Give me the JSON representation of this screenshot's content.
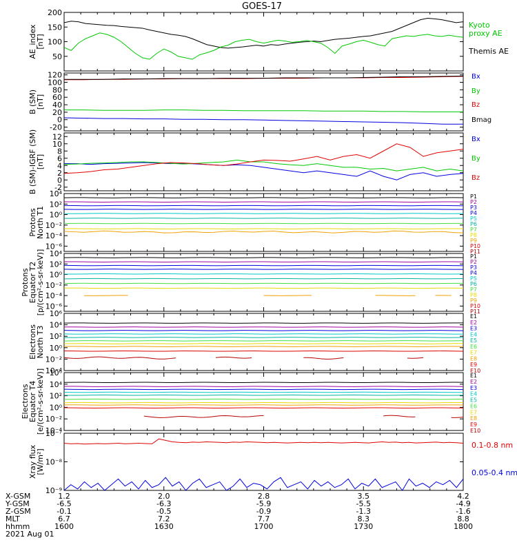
{
  "title": "GOES-17",
  "colors": {
    "black": "#000000",
    "green": "#00c800",
    "red": "#e00000",
    "blue": "#0000e0",
    "dkred": "#b40000",
    "cyan": "#00c8c8",
    "teal": "#00b4a0",
    "yellow": "#e8d800",
    "orange": "#f0a000",
    "purple": "#a000a0",
    "ltgreen": "#40e040"
  },
  "x_axis": {
    "row_labels": [
      "X-GSM",
      "Y-GSM",
      "Z-GSM",
      "MLT",
      "hhmm"
    ],
    "columns": [
      [
        "1.2",
        "-6.5",
        "-0.1",
        "6.7",
        "1600"
      ],
      [
        "2.0",
        "-6.3",
        "-0.5",
        "7.2",
        "1630"
      ],
      [
        "2.8",
        "-5.9",
        "-0.9",
        "7.7",
        "1700"
      ],
      [
        "3.5",
        "-5.5",
        "-1.3",
        "8.3",
        "1730"
      ],
      [
        "4.2",
        "-4.9",
        "-1.6",
        "8.8",
        "1800"
      ]
    ],
    "date": "2021 Aug 01"
  },
  "chart_data": [
    {
      "type": "line",
      "ylabel": "AE_index\n[nT]",
      "ylim": [
        0,
        200
      ],
      "yscale": "linear",
      "yticks": [
        50,
        100,
        150,
        200
      ],
      "legend": [
        "Kyoto\nproxy AE",
        "Themis AE"
      ],
      "legend_colors": [
        "green",
        "black"
      ],
      "series": [
        {
          "name": "Themis AE",
          "color": "black",
          "values": [
            165,
            170,
            168,
            162,
            160,
            158,
            156,
            155,
            152,
            150,
            148,
            146,
            140,
            135,
            130,
            125,
            122,
            118,
            110,
            100,
            90,
            85,
            80,
            78,
            80,
            82,
            85,
            88,
            85,
            90,
            88,
            92,
            95,
            98,
            100,
            102,
            100,
            104,
            108,
            110,
            112,
            115,
            118,
            120,
            125,
            130,
            135,
            145,
            155,
            165,
            175,
            180,
            178,
            175,
            170,
            165,
            168
          ]
        },
        {
          "name": "Kyoto proxy AE",
          "color": "green",
          "values": [
            80,
            70,
            95,
            110,
            120,
            130,
            125,
            115,
            100,
            80,
            60,
            45,
            40,
            60,
            75,
            65,
            50,
            45,
            40,
            55,
            62,
            70,
            82,
            88,
            100,
            105,
            108,
            100,
            95,
            100,
            105,
            102,
            98,
            100,
            104,
            100,
            95,
            80,
            60,
            85,
            92,
            100,
            105,
            98,
            90,
            85,
            110,
            115,
            120,
            118,
            122,
            125,
            120,
            118,
            122,
            118,
            115
          ]
        }
      ]
    },
    {
      "type": "line",
      "ylabel": "B (SM)\n[nT]",
      "ylim": [
        -30,
        125
      ],
      "yscale": "linear",
      "yticks": [
        -20,
        0,
        20,
        40,
        60,
        80,
        100,
        120
      ],
      "legend": [
        "Bx",
        "By",
        "Bz",
        "Bmag"
      ],
      "legend_colors": [
        "blue",
        "green",
        "red",
        "black"
      ],
      "series": [
        {
          "name": "Bx",
          "color": "blue",
          "values": [
            5,
            4,
            3,
            3,
            2,
            2,
            1,
            1,
            0,
            0,
            -1,
            -2,
            -3,
            -4,
            -5,
            -6,
            -7,
            -8,
            -10,
            -12,
            -12
          ]
        },
        {
          "name": "By",
          "color": "green",
          "values": [
            26,
            26,
            25,
            25,
            25,
            26,
            26,
            25,
            25,
            24,
            24,
            24,
            24,
            23,
            23,
            23,
            22,
            22,
            21,
            21,
            21
          ]
        },
        {
          "name": "Bz",
          "color": "red",
          "values": [
            107,
            107,
            108,
            108,
            109,
            109,
            110,
            110,
            110,
            110,
            111,
            111,
            111,
            112,
            112,
            112,
            113,
            113,
            114,
            115,
            116
          ]
        },
        {
          "name": "Bmag",
          "color": "black",
          "values": [
            108,
            108,
            108,
            109,
            109,
            110,
            110,
            110,
            111,
            111,
            111,
            112,
            112,
            112,
            112,
            113,
            114,
            115,
            115,
            116,
            117
          ]
        }
      ]
    },
    {
      "type": "line",
      "ylabel": "B (SM)-IGRF (SM)\n[nT]",
      "ylim": [
        -3,
        13
      ],
      "yscale": "linear",
      "yticks": [
        -2,
        0,
        2,
        4,
        6,
        8,
        10,
        12
      ],
      "legend": [
        "Bx",
        "By",
        "Bz"
      ],
      "legend_colors": [
        "blue",
        "green",
        "red"
      ],
      "series": [
        {
          "name": "Bx",
          "color": "blue",
          "values": [
            4.5,
            4.5,
            4.3,
            4.5,
            4.6,
            4.7,
            4.8,
            4.7,
            4.5,
            4.6,
            4.4,
            4.2,
            4.0,
            4.2,
            4.0,
            3.5,
            3.0,
            2.5,
            2.0,
            2.5,
            2.0,
            1.5,
            1.0,
            2.5,
            1.0,
            0.0,
            1.5,
            2.0,
            1.0,
            1.5,
            1.8
          ]
        },
        {
          "name": "By",
          "color": "green",
          "values": [
            4.3,
            4.4,
            4.6,
            4.7,
            4.8,
            5.0,
            5.0,
            4.8,
            4.6,
            4.4,
            4.6,
            4.8,
            5.0,
            5.5,
            5.0,
            5.0,
            4.5,
            4.2,
            4.0,
            4.5,
            4.0,
            3.5,
            3.5,
            3.0,
            3.2,
            2.5,
            3.0,
            3.5,
            2.5,
            3.0,
            2.5
          ]
        },
        {
          "name": "Bz",
          "color": "red",
          "values": [
            1.8,
            2.0,
            2.3,
            2.8,
            3.0,
            3.5,
            4.0,
            4.5,
            4.8,
            4.7,
            4.5,
            4.2,
            4.0,
            4.4,
            5.0,
            5.5,
            5.4,
            5.2,
            5.8,
            6.5,
            5.5,
            6.5,
            7.0,
            6.0,
            8.0,
            10.0,
            9.0,
            6.5,
            7.5,
            8.0,
            8.5
          ]
        }
      ]
    },
    {
      "type": "line",
      "ylabel": "Protons\nNorth T1",
      "ylim": [
        -7,
        4
      ],
      "yscale": "log10",
      "yticks": [
        -6,
        -4,
        -2,
        0,
        2,
        4
      ],
      "ytick_labels": [
        "10⁻⁶",
        "10⁻⁴",
        "10⁻²",
        "10⁰",
        "10²",
        "10⁴"
      ],
      "legend": [
        "P1",
        "P2",
        "P3",
        "P4",
        "P5",
        "P6",
        "P7",
        "P8",
        "P9",
        "P10",
        "P11"
      ],
      "legend_colors": [
        "black",
        "purple",
        "blue",
        "blue",
        "cyan",
        "teal",
        "ltgreen",
        "yellow",
        "orange",
        "red",
        "dkred"
      ],
      "series": [
        {
          "name": "P1",
          "color": "black",
          "level": 3.2
        },
        {
          "name": "P2",
          "color": "purple",
          "level": 2.4
        },
        {
          "name": "P3",
          "color": "blue",
          "level": 1.7
        },
        {
          "name": "P4",
          "color": "blue",
          "level": 1.0
        },
        {
          "name": "P5",
          "color": "cyan",
          "level": 0.2
        },
        {
          "name": "P6",
          "color": "teal",
          "level": -0.7
        },
        {
          "name": "P7",
          "color": "ltgreen",
          "level": -1.7
        },
        {
          "name": "P8",
          "color": "yellow",
          "level": -2.7
        },
        {
          "name": "P9",
          "color": "orange",
          "level": -3.3,
          "wavy": true
        }
      ]
    },
    {
      "type": "line",
      "ylabel": "Protons\nEquator T2\n[p/(cm²-s-sr-keV)]",
      "ylim": [
        -7,
        4
      ],
      "yscale": "log10",
      "yticks": [
        -6,
        -4,
        -2,
        0,
        2,
        4
      ],
      "ytick_labels": [
        "10⁻⁶",
        "10⁻⁴",
        "10⁻²",
        "10⁰",
        "10²",
        "10⁴"
      ],
      "legend": [
        "P1",
        "P2",
        "P3",
        "P4",
        "P5",
        "P6",
        "P7",
        "P8",
        "P9",
        "P10",
        "P11"
      ],
      "legend_colors": [
        "black",
        "purple",
        "blue",
        "blue",
        "cyan",
        "teal",
        "ltgreen",
        "yellow",
        "orange",
        "red",
        "dkred"
      ],
      "series": [
        {
          "name": "P1",
          "color": "black",
          "level": 3.2
        },
        {
          "name": "P2",
          "color": "purple",
          "level": 2.4
        },
        {
          "name": "P3",
          "color": "blue",
          "level": 1.7
        },
        {
          "name": "P4",
          "color": "blue",
          "level": 1.0
        },
        {
          "name": "P5",
          "color": "cyan",
          "level": 0.1
        },
        {
          "name": "P6",
          "color": "teal",
          "level": -0.8
        },
        {
          "name": "P7",
          "color": "ltgreen",
          "level": -1.7
        },
        {
          "name": "P8",
          "color": "yellow",
          "level": -2.6
        },
        {
          "name": "P9",
          "color": "orange",
          "level": -4.0,
          "segments": [
            [
              0.05,
              0.16
            ],
            [
              0.5,
              0.62
            ],
            [
              0.78,
              0.88
            ],
            [
              0.93,
              0.97
            ]
          ]
        }
      ]
    },
    {
      "type": "line",
      "ylabel": "Electrons\nNorth T3",
      "ylim": [
        -4,
        6
      ],
      "yscale": "log10",
      "yticks": [
        -4,
        -2,
        0,
        2,
        4,
        6
      ],
      "ytick_labels": [
        "10⁻⁴",
        "10⁻²",
        "10⁰",
        "10²",
        "10⁴",
        "10⁶"
      ],
      "legend": [
        "E1",
        "E2",
        "E3",
        "E4",
        "E5",
        "E6",
        "E7",
        "E8",
        "E9",
        "E10"
      ],
      "legend_colors": [
        "black",
        "purple",
        "blue",
        "cyan",
        "teal",
        "ltgreen",
        "yellow",
        "orange",
        "red",
        "dkred"
      ],
      "series": [
        {
          "name": "E1",
          "color": "black",
          "level": 4.3
        },
        {
          "name": "E2",
          "color": "purple",
          "level": 3.6
        },
        {
          "name": "E3",
          "color": "blue",
          "level": 3.0
        },
        {
          "name": "E4",
          "color": "cyan",
          "level": 2.4
        },
        {
          "name": "E5",
          "color": "teal",
          "level": 1.8
        },
        {
          "name": "E6",
          "color": "ltgreen",
          "level": 1.2
        },
        {
          "name": "E7",
          "color": "yellow",
          "level": 0.7
        },
        {
          "name": "E8",
          "color": "orange",
          "level": 0.2
        },
        {
          "name": "E9",
          "color": "red",
          "level": -0.6
        },
        {
          "name": "E10",
          "color": "dkred",
          "level": -1.8,
          "segments": [
            [
              0,
              0.28
            ],
            [
              0.38,
              0.47
            ],
            [
              0.6,
              0.7
            ],
            [
              0.86,
              0.9
            ]
          ],
          "wavy": true
        }
      ]
    },
    {
      "type": "line",
      "ylabel": "Electrons\nEquator T4\n[e/(cm²-s-sr-keV)]",
      "ylim": [
        -4,
        6
      ],
      "yscale": "log10",
      "yticks": [
        -4,
        -2,
        0,
        2,
        4,
        6
      ],
      "ytick_labels": [
        "10⁻⁴",
        "10⁻²",
        "10⁰",
        "10²",
        "10⁴",
        "10⁶"
      ],
      "legend": [
        "E1",
        "E2",
        "E3",
        "E4",
        "E5",
        "E6",
        "E7",
        "E8",
        "E9",
        "E10"
      ],
      "legend_colors": [
        "black",
        "purple",
        "blue",
        "cyan",
        "teal",
        "ltgreen",
        "yellow",
        "orange",
        "red",
        "dkred"
      ],
      "series": [
        {
          "name": "E1",
          "color": "black",
          "level": 4.3
        },
        {
          "name": "E2",
          "color": "purple",
          "level": 3.6
        },
        {
          "name": "E3",
          "color": "blue",
          "level": 3.1
        },
        {
          "name": "E4",
          "color": "cyan",
          "level": 2.6
        },
        {
          "name": "E5",
          "color": "teal",
          "level": 2.1
        },
        {
          "name": "E6",
          "color": "ltgreen",
          "level": 1.4
        },
        {
          "name": "E7",
          "color": "yellow",
          "level": 0.8
        },
        {
          "name": "E8",
          "color": "orange",
          "level": 0.4
        },
        {
          "name": "E9",
          "color": "red",
          "level": -0.1
        },
        {
          "name": "E10",
          "color": "dkred",
          "level": -1.6,
          "segments": [
            [
              0.2,
              0.5
            ],
            [
              0.8,
              0.88
            ],
            [
              0.97,
              1.0
            ]
          ],
          "wavy": true
        }
      ]
    },
    {
      "type": "line",
      "ylabel": "Xray flux\n[W/m²]",
      "ylim": [
        -9,
        -7
      ],
      "yscale": "log10",
      "yticks": [
        -9,
        -8,
        -7
      ],
      "ytick_labels": [
        "10⁻⁹",
        "10⁻⁸",
        "10⁻⁷"
      ],
      "legend": [
        "0.1-0.8 nm",
        "0.05-0.4 nm"
      ],
      "legend_colors": [
        "red",
        "blue"
      ],
      "series": [
        {
          "name": "0.1-0.8 nm",
          "color": "red",
          "values": [
            -7.35,
            -7.37,
            -7.36,
            -7.38,
            -7.37,
            -7.36,
            -7.37,
            -7.36,
            -7.35,
            -7.37,
            -7.36,
            -7.35,
            -7.36,
            -7.37,
            -7.2,
            -7.25,
            -7.3,
            -7.32,
            -7.33,
            -7.31,
            -7.32,
            -7.3,
            -7.31,
            -7.32,
            -7.33,
            -7.31,
            -7.32,
            -7.3,
            -7.31,
            -7.32,
            -7.33,
            -7.32,
            -7.33,
            -7.34,
            -7.33,
            -7.32,
            -7.33,
            -7.32,
            -7.33,
            -7.32,
            -7.33,
            -7.34,
            -7.33,
            -7.32,
            -7.33,
            -7.34,
            -7.32,
            -7.3,
            -7.32,
            -7.31,
            -7.33,
            -7.32,
            -7.34,
            -7.33,
            -7.32,
            -7.31,
            -7.33,
            -7.32,
            -7.33,
            -7.35
          ]
        },
        {
          "name": "0.05-0.4 nm",
          "color": "blue",
          "values": [
            -9.0,
            -8.8,
            -8.95,
            -8.7,
            -8.9,
            -8.75,
            -9.0,
            -8.8,
            -8.6,
            -8.85,
            -8.7,
            -8.95,
            -8.65,
            -8.9,
            -8.8,
            -8.55,
            -8.85,
            -8.7,
            -9.0,
            -8.75,
            -8.6,
            -8.9,
            -8.8,
            -8.7,
            -9.0,
            -8.85,
            -8.6,
            -8.9,
            -8.75,
            -8.8,
            -8.95,
            -8.7,
            -8.55,
            -8.9,
            -8.8,
            -8.7,
            -8.95,
            -8.65,
            -8.85,
            -8.7,
            -8.9,
            -8.8,
            -8.6,
            -8.95,
            -8.75,
            -8.85,
            -8.6,
            -8.9,
            -8.8,
            -8.7,
            -9.0,
            -8.6,
            -8.85,
            -8.75,
            -8.9,
            -8.7,
            -8.8,
            -8.65,
            -8.9,
            -8.6
          ]
        }
      ]
    }
  ]
}
